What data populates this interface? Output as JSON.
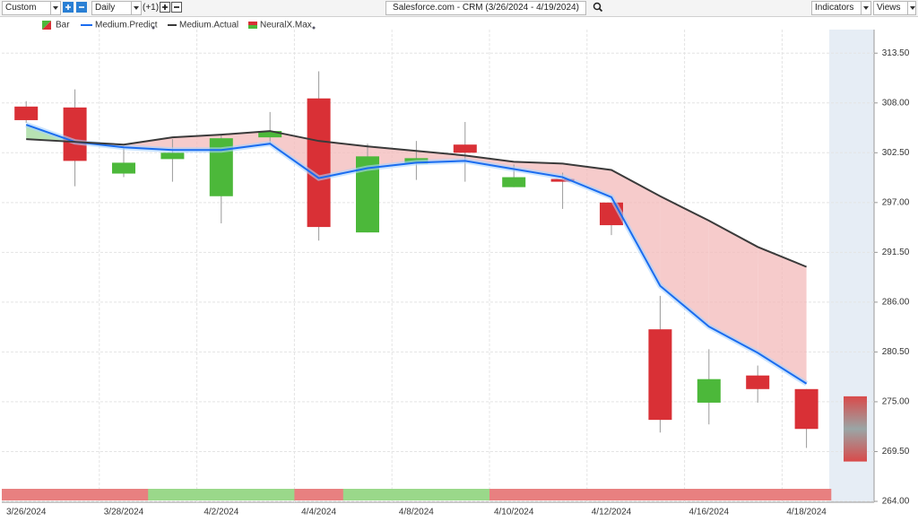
{
  "toolbar": {
    "range": "Custom",
    "interval": "Daily",
    "offset": "(+1)",
    "title": "Salesforce.com - CRM (3/26/2024 - 4/19/2024)",
    "indicators": "Indicators",
    "views": "Views"
  },
  "chart_data": {
    "type": "candlestick",
    "categories": [
      "3/26/2024",
      null,
      "3/28/2024",
      null,
      "4/2/2024",
      null,
      "4/4/2024",
      null,
      "4/8/2024",
      null,
      "4/10/2024",
      null,
      "4/12/2024",
      null,
      "4/16/2024",
      null,
      "4/18/2024",
      null
    ],
    "candles": {
      "name": "Bar",
      "up_color": "#4cb83a",
      "down_color": "#d93036",
      "open": [
        307.6,
        307.5,
        300.2,
        301.8,
        297.7,
        304.2,
        308.5,
        293.7,
        301.3,
        303.4,
        298.7,
        299.6,
        297.0,
        283.0,
        274.9,
        277.9,
        276.4,
        null
      ],
      "high": [
        308.2,
        309.5,
        303.0,
        304.0,
        304.5,
        307.0,
        311.5,
        303.5,
        303.8,
        305.9,
        301.2,
        300.3,
        297.0,
        286.7,
        280.8,
        279.0,
        276.4,
        null
      ],
      "low": [
        305.8,
        298.8,
        299.8,
        299.3,
        294.7,
        303.5,
        292.8,
        293.7,
        299.5,
        299.3,
        298.7,
        296.3,
        293.4,
        271.6,
        272.5,
        274.9,
        269.9,
        null
      ],
      "close": [
        306.1,
        301.6,
        301.4,
        302.5,
        304.1,
        304.9,
        294.3,
        302.1,
        301.9,
        302.5,
        299.8,
        299.3,
        294.5,
        273.0,
        277.5,
        276.4,
        272.0,
        null
      ]
    },
    "forecast": {
      "low": 268.4,
      "high": 275.6
    },
    "series": [
      {
        "name": "Medium.Predict",
        "color": "#1a6cf0",
        "values": [
          305.6,
          303.7,
          303.1,
          302.8,
          302.8,
          303.5,
          299.7,
          300.8,
          301.4,
          301.6,
          300.7,
          299.8,
          297.6,
          287.8,
          283.3,
          280.4,
          277.0,
          null
        ]
      },
      {
        "name": "Medium.Actual",
        "color": "#3a3a3a",
        "values": [
          304.0,
          303.7,
          303.4,
          304.2,
          304.5,
          304.9,
          303.8,
          303.2,
          302.7,
          302.2,
          301.5,
          301.3,
          300.6,
          297.7,
          295.0,
          292.1,
          289.9,
          null
        ]
      }
    ],
    "fill_above_color": "#9fd89a",
    "fill_below_color": "#f3b9b9",
    "signal": {
      "name": "NeuralX.Max",
      "colors": [
        "#e88080",
        "#e88080",
        "#e88080",
        "#9ad88a",
        "#9ad88a",
        "#9ad88a",
        "#e88080",
        "#9ad88a",
        "#9ad88a",
        "#9ad88a",
        "#e88080",
        "#e88080",
        "#e88080",
        "#e88080",
        "#e88080",
        "#e88080",
        "#e88080",
        null
      ]
    },
    "ylim": [
      263.9,
      316.1
    ],
    "yticks": [
      {
        "value": 313.5,
        "label": "313.50"
      },
      {
        "value": 308,
        "label": "308.00"
      },
      {
        "value": 302.5,
        "label": "302.50"
      },
      {
        "value": 297,
        "label": "297.00"
      },
      {
        "value": 291.5,
        "label": "291.50"
      },
      {
        "value": 286,
        "label": "286.00"
      },
      {
        "value": 280.5,
        "label": "280.50"
      },
      {
        "value": 275,
        "label": "275.00"
      },
      {
        "value": 269.5,
        "label": "269.50"
      },
      {
        "value": 264,
        "label": "264.00"
      }
    ],
    "grid": true
  }
}
